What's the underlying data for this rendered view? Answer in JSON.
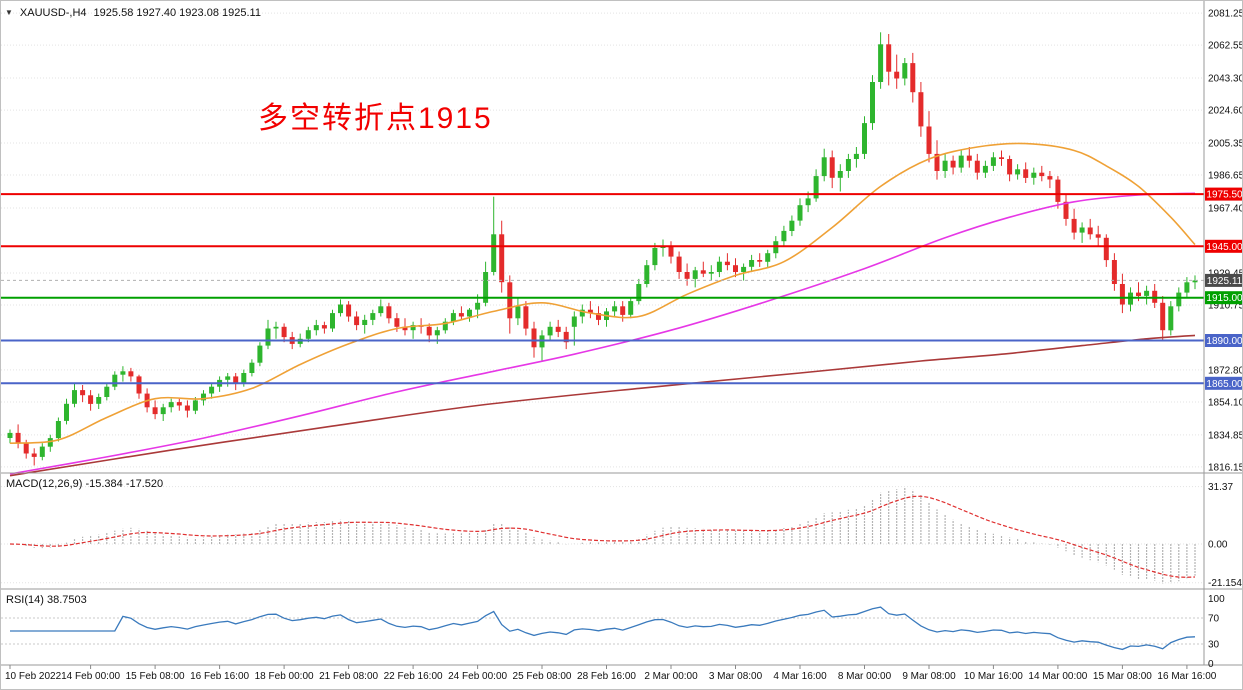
{
  "window": {
    "symbol_period": "XAUUSD-,H4",
    "ohlc_text": "1925.58 1927.40 1923.08 1925.11"
  },
  "annotation": {
    "text": "多空转折点1915",
    "color": "#f20000"
  },
  "indicators": {
    "macd": {
      "label_text": "MACD(12,26,9) -15.384 -17.520",
      "axis": [
        {
          "text": "31.37",
          "value": 31.37
        },
        {
          "text": "0.00",
          "value": 0
        },
        {
          "text": "-21.154",
          "value": -21.154
        }
      ]
    },
    "rsi": {
      "label_text": "RSI(14) 38.7503",
      "axis": [
        {
          "text": "100",
          "value": 100
        },
        {
          "text": "70",
          "value": 70
        },
        {
          "text": "30",
          "value": 30
        },
        {
          "text": "0",
          "value": 0
        }
      ],
      "levels": [
        70,
        30
      ]
    }
  },
  "chart_data": {
    "type": "candlestick",
    "symbol": "XAUUSD",
    "timeframe": "H4",
    "colors": {
      "up": "#2eb52e",
      "down": "#e42b2b",
      "grid": "#e3e3e3",
      "separator": "#9a9a9a",
      "axis_text": "#111111",
      "macd_hist": "#b4b4b4",
      "macd_signal": "#e03030",
      "rsi_line": "#3a7abd",
      "rsi_levels": "#c8c8c8"
    },
    "price_axis": {
      "min": 1812.6,
      "max": 2088.3,
      "labels": [
        {
          "text": "2081.25",
          "value": 2081.25
        },
        {
          "text": "2062.55",
          "value": 2062.55
        },
        {
          "text": "2043.30",
          "value": 2043.3
        },
        {
          "text": "2024.60",
          "value": 2024.6
        },
        {
          "text": "2005.35",
          "value": 2005.35
        },
        {
          "text": "1986.65",
          "value": 1986.65
        },
        {
          "text": "1967.40",
          "value": 1967.4
        },
        {
          "text": "1929.45",
          "value": 1929.45
        },
        {
          "text": "1910.75",
          "value": 1910.75
        },
        {
          "text": "1872.80",
          "value": 1872.8
        },
        {
          "text": "1854.10",
          "value": 1854.1
        },
        {
          "text": "1834.85",
          "value": 1834.85
        },
        {
          "text": "1816.15",
          "value": 1816.15
        }
      ]
    },
    "time_axis": {
      "labels": [
        "10 Feb 2022",
        "14 Feb 00:00",
        "15 Feb 08:00",
        "16 Feb 16:00",
        "18 Feb 00:00",
        "21 Feb 08:00",
        "22 Feb 16:00",
        "24 Feb 00:00",
        "25 Feb 08:00",
        "28 Feb 16:00",
        "2 Mar 00:00",
        "3 Mar 08:00",
        "4 Mar 16:00",
        "8 Mar 00:00",
        "9 Mar 08:00",
        "10 Mar 16:00",
        "14 Mar 00:00",
        "15 Mar 08:00",
        "16 Mar 16:00"
      ],
      "indices": [
        0,
        10,
        18,
        26,
        34,
        42,
        50,
        58,
        66,
        74,
        82,
        90,
        98,
        106,
        114,
        122,
        130,
        138,
        146
      ]
    },
    "levels": [
      {
        "label": "1975.50",
        "value": 1975.5,
        "color": "#ee0000"
      },
      {
        "label": "1945.00",
        "value": 1945.0,
        "color": "#ee0000"
      },
      {
        "label": "1915.00",
        "value": 1915.0,
        "color": "#00a000"
      },
      {
        "label": "1890.00",
        "value": 1890.0,
        "color": "#4a64c8"
      },
      {
        "label": "1865.00",
        "value": 1865.0,
        "color": "#4a64c8"
      }
    ],
    "current_price": {
      "label": "1925.11",
      "value": 1925.11,
      "badge_color": "#4b4b4b",
      "line_color": "#b0b0b0"
    },
    "moving_averages": [
      {
        "name": "ma-fast-orange",
        "color": "#efa136",
        "points": [
          [
            0,
            1830
          ],
          [
            6,
            1832
          ],
          [
            12,
            1845
          ],
          [
            18,
            1856
          ],
          [
            24,
            1856
          ],
          [
            30,
            1862
          ],
          [
            36,
            1876
          ],
          [
            42,
            1888
          ],
          [
            48,
            1897
          ],
          [
            54,
            1900
          ],
          [
            60,
            1907
          ],
          [
            66,
            1912
          ],
          [
            72,
            1906
          ],
          [
            78,
            1904
          ],
          [
            84,
            1917
          ],
          [
            90,
            1928
          ],
          [
            96,
            1936
          ],
          [
            102,
            1956
          ],
          [
            108,
            1980
          ],
          [
            114,
            1996
          ],
          [
            120,
            2003
          ],
          [
            126,
            2005
          ],
          [
            132,
            2001
          ],
          [
            136,
            1992
          ],
          [
            140,
            1980
          ],
          [
            144,
            1962
          ],
          [
            147,
            1946
          ]
        ]
      },
      {
        "name": "ma-mid-magenta",
        "color": "#e637e6",
        "points": [
          [
            0,
            1812
          ],
          [
            12,
            1822
          ],
          [
            24,
            1833
          ],
          [
            36,
            1846
          ],
          [
            48,
            1860
          ],
          [
            60,
            1872
          ],
          [
            70,
            1882
          ],
          [
            82,
            1896
          ],
          [
            94,
            1913
          ],
          [
            106,
            1932
          ],
          [
            116,
            1950
          ],
          [
            124,
            1962
          ],
          [
            132,
            1971
          ],
          [
            140,
            1975
          ],
          [
            147,
            1976
          ]
        ]
      },
      {
        "name": "ma-slow-darkred",
        "color": "#aa3939",
        "points": [
          [
            0,
            1811
          ],
          [
            20,
            1826
          ],
          [
            40,
            1840
          ],
          [
            58,
            1852
          ],
          [
            78,
            1862
          ],
          [
            98,
            1871
          ],
          [
            113,
            1878
          ],
          [
            123,
            1882
          ],
          [
            133,
            1887
          ],
          [
            141,
            1891
          ],
          [
            147,
            1893
          ]
        ]
      }
    ],
    "candles": [
      [
        1833,
        1838,
        1830,
        1836
      ],
      [
        1836,
        1841,
        1827,
        1830
      ],
      [
        1830,
        1832,
        1821,
        1824
      ],
      [
        1824,
        1827,
        1817,
        1822
      ],
      [
        1822,
        1830,
        1820,
        1828
      ],
      [
        1828,
        1835,
        1825,
        1833
      ],
      [
        1833,
        1845,
        1831,
        1843
      ],
      [
        1843,
        1856,
        1841,
        1853
      ],
      [
        1853,
        1865,
        1851,
        1861
      ],
      [
        1861,
        1864,
        1854,
        1858
      ],
      [
        1858,
        1861,
        1849,
        1853
      ],
      [
        1853,
        1859,
        1850,
        1857
      ],
      [
        1857,
        1865,
        1855,
        1863
      ],
      [
        1863,
        1872,
        1861,
        1870
      ],
      [
        1870,
        1875,
        1866,
        1872
      ],
      [
        1872,
        1874,
        1866,
        1869
      ],
      [
        1869,
        1870,
        1856,
        1859
      ],
      [
        1859,
        1862,
        1848,
        1851
      ],
      [
        1851,
        1855,
        1844,
        1847
      ],
      [
        1847,
        1853,
        1843,
        1851
      ],
      [
        1851,
        1856,
        1848,
        1854
      ],
      [
        1854,
        1856,
        1849,
        1852
      ],
      [
        1852,
        1855,
        1845,
        1849
      ],
      [
        1849,
        1857,
        1847,
        1855
      ],
      [
        1855,
        1861,
        1852,
        1859
      ],
      [
        1859,
        1865,
        1856,
        1863
      ],
      [
        1863,
        1869,
        1860,
        1867
      ],
      [
        1867,
        1871,
        1863,
        1869
      ],
      [
        1869,
        1871,
        1861,
        1865
      ],
      [
        1865,
        1873,
        1863,
        1871
      ],
      [
        1871,
        1879,
        1869,
        1877
      ],
      [
        1877,
        1889,
        1875,
        1887
      ],
      [
        1887,
        1902,
        1885,
        1897
      ],
      [
        1897,
        1901,
        1891,
        1898
      ],
      [
        1898,
        1900,
        1889,
        1892
      ],
      [
        1892,
        1895,
        1885,
        1888
      ],
      [
        1888,
        1894,
        1886,
        1891
      ],
      [
        1891,
        1898,
        1889,
        1896
      ],
      [
        1896,
        1902,
        1893,
        1899
      ],
      [
        1899,
        1901,
        1894,
        1897
      ],
      [
        1897,
        1908,
        1895,
        1906
      ],
      [
        1906,
        1914,
        1904,
        1911
      ],
      [
        1911,
        1913,
        1901,
        1904
      ],
      [
        1904,
        1907,
        1896,
        1899
      ],
      [
        1899,
        1905,
        1894,
        1902
      ],
      [
        1902,
        1908,
        1899,
        1906
      ],
      [
        1906,
        1914,
        1904,
        1910
      ],
      [
        1910,
        1912,
        1900,
        1903
      ],
      [
        1903,
        1906,
        1895,
        1898
      ],
      [
        1898,
        1903,
        1893,
        1896
      ],
      [
        1896,
        1901,
        1891,
        1899
      ],
      [
        1899,
        1903,
        1894,
        1898
      ],
      [
        1898,
        1900,
        1889,
        1893
      ],
      [
        1893,
        1898,
        1888,
        1896
      ],
      [
        1896,
        1903,
        1894,
        1901
      ],
      [
        1901,
        1908,
        1899,
        1906
      ],
      [
        1906,
        1910,
        1902,
        1904
      ],
      [
        1904,
        1909,
        1901,
        1908
      ],
      [
        1908,
        1917,
        1903,
        1912
      ],
      [
        1912,
        1936,
        1910,
        1930
      ],
      [
        1930,
        1974,
        1928,
        1952
      ],
      [
        1952,
        1960,
        1918,
        1924
      ],
      [
        1924,
        1928,
        1894,
        1903
      ],
      [
        1903,
        1915,
        1899,
        1910
      ],
      [
        1910,
        1913,
        1893,
        1897
      ],
      [
        1897,
        1901,
        1880,
        1886
      ],
      [
        1886,
        1896,
        1878,
        1893
      ],
      [
        1893,
        1901,
        1890,
        1898
      ],
      [
        1898,
        1902,
        1892,
        1895
      ],
      [
        1895,
        1898,
        1885,
        1889
      ],
      [
        1898,
        1907,
        1887,
        1904
      ],
      [
        1904,
        1911,
        1900,
        1908
      ],
      [
        1908,
        1913,
        1903,
        1906
      ],
      [
        1906,
        1910,
        1899,
        1902
      ],
      [
        1902,
        1909,
        1898,
        1907
      ],
      [
        1907,
        1913,
        1904,
        1910
      ],
      [
        1910,
        1913,
        1901,
        1905
      ],
      [
        1905,
        1915,
        1903,
        1913
      ],
      [
        1913,
        1926,
        1911,
        1923
      ],
      [
        1923,
        1937,
        1921,
        1934
      ],
      [
        1934,
        1947,
        1931,
        1944
      ],
      [
        1944,
        1949,
        1939,
        1945
      ],
      [
        1945,
        1948,
        1935,
        1939
      ],
      [
        1939,
        1942,
        1926,
        1930
      ],
      [
        1930,
        1935,
        1922,
        1926
      ],
      [
        1926,
        1933,
        1921,
        1931
      ],
      [
        1931,
        1936,
        1927,
        1929
      ],
      [
        1929,
        1934,
        1925,
        1930
      ],
      [
        1930,
        1939,
        1927,
        1936
      ],
      [
        1936,
        1941,
        1931,
        1934
      ],
      [
        1934,
        1938,
        1927,
        1930
      ],
      [
        1930,
        1935,
        1925,
        1933
      ],
      [
        1933,
        1940,
        1930,
        1937
      ],
      [
        1937,
        1941,
        1933,
        1936
      ],
      [
        1936,
        1943,
        1933,
        1941
      ],
      [
        1941,
        1951,
        1938,
        1948
      ],
      [
        1948,
        1957,
        1945,
        1954
      ],
      [
        1954,
        1963,
        1951,
        1960
      ],
      [
        1960,
        1973,
        1957,
        1969
      ],
      [
        1969,
        1977,
        1965,
        1973
      ],
      [
        1973,
        1990,
        1971,
        1986
      ],
      [
        1986,
        2002,
        1983,
        1997
      ],
      [
        1997,
        2001,
        1979,
        1985
      ],
      [
        1985,
        1993,
        1977,
        1989
      ],
      [
        1989,
        1999,
        1985,
        1996
      ],
      [
        1996,
        2003,
        1991,
        1999
      ],
      [
        1999,
        2021,
        1996,
        2017
      ],
      [
        2017,
        2045,
        2013,
        2041
      ],
      [
        2041,
        2070,
        2037,
        2063
      ],
      [
        2063,
        2069,
        2039,
        2047
      ],
      [
        2047,
        2057,
        2037,
        2043
      ],
      [
        2043,
        2055,
        2039,
        2052
      ],
      [
        2052,
        2058,
        2029,
        2035
      ],
      [
        2035,
        2041,
        2009,
        2015
      ],
      [
        2015,
        2024,
        1994,
        1999
      ],
      [
        1999,
        2007,
        1984,
        1989
      ],
      [
        1989,
        1999,
        1985,
        1995
      ],
      [
        1995,
        1998,
        1987,
        1991
      ],
      [
        1991,
        2001,
        1988,
        1998
      ],
      [
        1998,
        2003,
        1991,
        1995
      ],
      [
        1995,
        1999,
        1984,
        1988
      ],
      [
        1988,
        1995,
        1985,
        1992
      ],
      [
        1992,
        2000,
        1989,
        1997
      ],
      [
        1997,
        2001,
        1992,
        1996
      ],
      [
        1996,
        1998,
        1983,
        1987
      ],
      [
        1987,
        1993,
        1984,
        1990
      ],
      [
        1990,
        1994,
        1982,
        1985
      ],
      [
        1985,
        1991,
        1981,
        1988
      ],
      [
        1988,
        1992,
        1983,
        1986
      ],
      [
        1986,
        1989,
        1979,
        1984
      ],
      [
        1984,
        1986,
        1967,
        1971
      ],
      [
        1971,
        1975,
        1957,
        1961
      ],
      [
        1961,
        1967,
        1949,
        1953
      ],
      [
        1953,
        1959,
        1947,
        1956
      ],
      [
        1956,
        1961,
        1949,
        1952
      ],
      [
        1952,
        1957,
        1945,
        1950
      ],
      [
        1950,
        1952,
        1933,
        1937
      ],
      [
        1937,
        1941,
        1919,
        1923
      ],
      [
        1923,
        1929,
        1906,
        1911
      ],
      [
        1911,
        1921,
        1907,
        1918
      ],
      [
        1918,
        1924,
        1913,
        1916
      ],
      [
        1916,
        1922,
        1911,
        1919
      ],
      [
        1919,
        1923,
        1909,
        1912
      ],
      [
        1912,
        1916,
        1890,
        1896
      ],
      [
        1896,
        1913,
        1893,
        1910
      ],
      [
        1910,
        1921,
        1907,
        1918
      ],
      [
        1918,
        1927,
        1915,
        1924
      ],
      [
        1924,
        1928,
        1920,
        1925.1
      ]
    ]
  }
}
